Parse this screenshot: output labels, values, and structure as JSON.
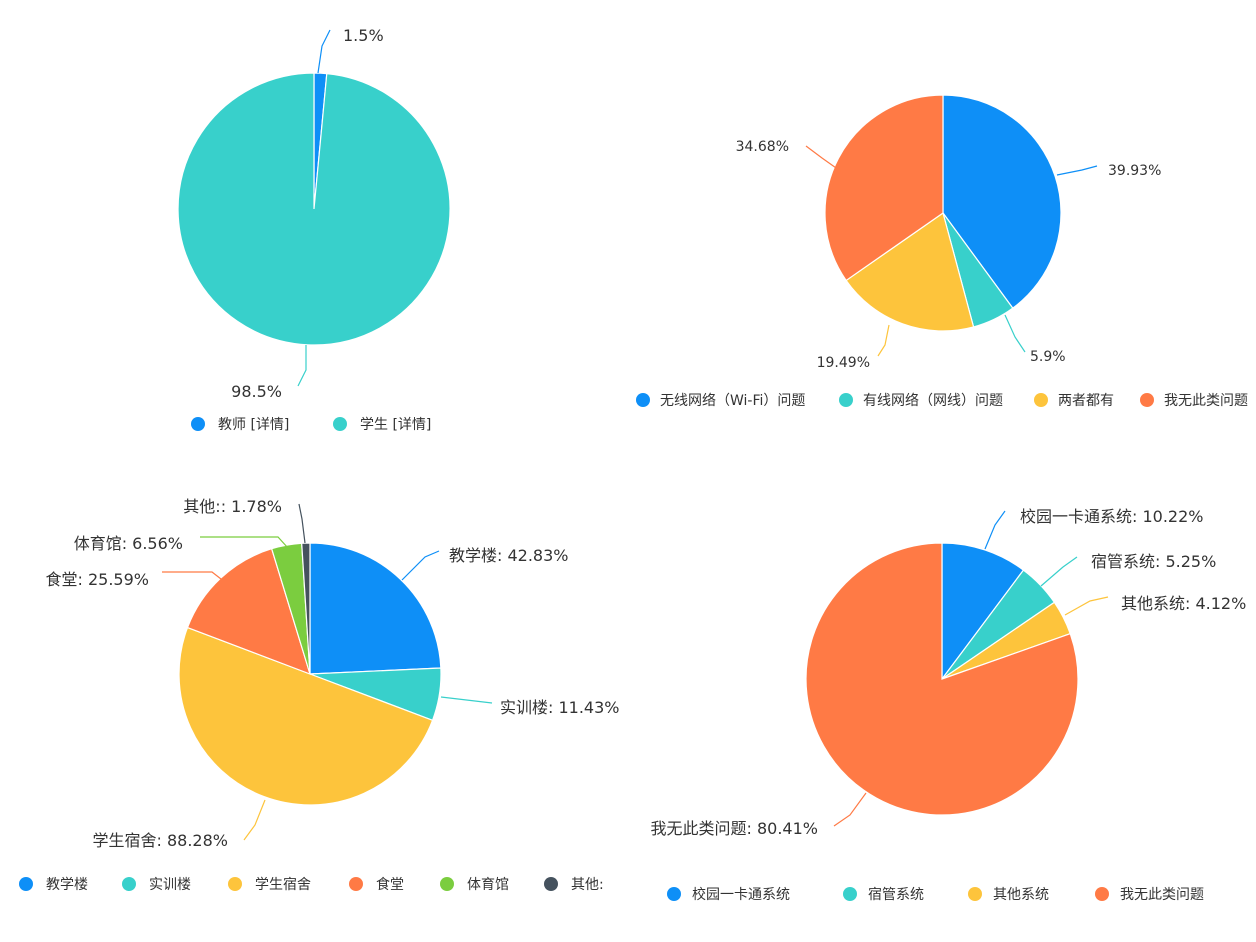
{
  "chart_data": [
    {
      "type": "pie",
      "slices": [
        {
          "label": "教师 [详情]",
          "value": 1.5,
          "display": "1.5%",
          "color": "#0e8ff7"
        },
        {
          "label": "学生 [详情]",
          "value": 98.5,
          "display": "98.5%",
          "color": "#38d0cb"
        }
      ],
      "legend": [
        "教师 [详情]",
        "学生 [详情]"
      ],
      "legend_placement": "bottom"
    },
    {
      "type": "pie",
      "slices": [
        {
          "label": "无线网络（Wi-Fi）问题",
          "value": 39.93,
          "display": "39.93%",
          "color": "#0e8ff7"
        },
        {
          "label": "有线网络（网线）问题",
          "value": 5.9,
          "display": "5.9%",
          "color": "#38d0cb"
        },
        {
          "label": "两者都有",
          "value": 19.49,
          "display": "19.49%",
          "color": "#fdc43c"
        },
        {
          "label": "我无此类问题",
          "value": 34.68,
          "display": "34.68%",
          "color": "#ff7a45"
        }
      ],
      "legend": [
        "无线网络（Wi-Fi）问题",
        "有线网络（网线）问题",
        "两者都有",
        "我无此类问题"
      ],
      "legend_placement": "bottom"
    },
    {
      "type": "pie",
      "slices": [
        {
          "label": "教学楼",
          "value": 42.83,
          "display": "教学楼: 42.83%",
          "color": "#0e8ff7"
        },
        {
          "label": "实训楼",
          "value": 11.43,
          "display": "实训楼: 11.43%",
          "color": "#38d0cb"
        },
        {
          "label": "学生宿舍",
          "value": 88.28,
          "display": "学生宿舍: 88.28%",
          "color": "#fdc43c"
        },
        {
          "label": "食堂",
          "value": 25.59,
          "display": "食堂: 25.59%",
          "color": "#ff7a45"
        },
        {
          "label": "体育馆",
          "value": 6.56,
          "display": "体育馆: 6.56%",
          "color": "#7bcd3f"
        },
        {
          "label": "其他:",
          "value": 1.78,
          "display": "其他:: 1.78%",
          "color": "#45525e"
        }
      ],
      "legend": [
        "教学楼",
        "实训楼",
        "学生宿舍",
        "食堂",
        "体育馆",
        "其他:"
      ],
      "legend_placement": "bottom"
    },
    {
      "type": "pie",
      "slices": [
        {
          "label": "校园一卡通系统",
          "value": 10.22,
          "display": "校园一卡通系统: 10.22%",
          "color": "#0e8ff7"
        },
        {
          "label": "宿管系统",
          "value": 5.25,
          "display": "宿管系统: 5.25%",
          "color": "#38d0cb"
        },
        {
          "label": "其他系统",
          "value": 4.12,
          "display": "其他系统: 4.12%",
          "color": "#fdc43c"
        },
        {
          "label": "我无此类问题",
          "value": 80.41,
          "display": "我无此类问题: 80.41%",
          "color": "#ff7a45"
        }
      ],
      "legend": [
        "校园一卡通系统",
        "宿管系统",
        "其他系统",
        "我无此类问题"
      ],
      "legend_placement": "bottom"
    }
  ]
}
